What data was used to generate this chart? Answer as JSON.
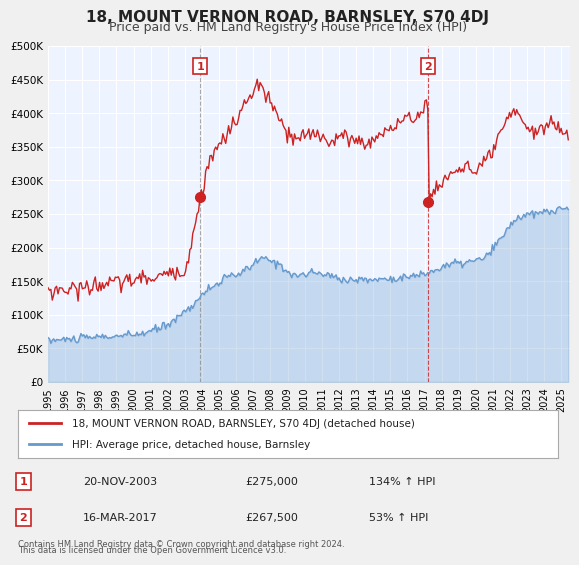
{
  "title": "18, MOUNT VERNON ROAD, BARNSLEY, S70 4DJ",
  "subtitle": "Price paid vs. HM Land Registry's House Price Index (HPI)",
  "xlabel": "",
  "ylabel": "",
  "ylim": [
    0,
    500000
  ],
  "yticks": [
    0,
    50000,
    100000,
    150000,
    200000,
    250000,
    300000,
    350000,
    400000,
    450000,
    500000
  ],
  "ytick_labels": [
    "£0",
    "£50K",
    "£100K",
    "£150K",
    "£200K",
    "£250K",
    "£300K",
    "£350K",
    "£400K",
    "£450K",
    "£500K"
  ],
  "xlim_start": 1995.0,
  "xlim_end": 2025.5,
  "xticks": [
    1995,
    1996,
    1997,
    1998,
    1999,
    2000,
    2001,
    2002,
    2003,
    2004,
    2005,
    2006,
    2007,
    2008,
    2009,
    2010,
    2011,
    2012,
    2013,
    2014,
    2015,
    2016,
    2017,
    2018,
    2019,
    2020,
    2021,
    2022,
    2023,
    2024,
    2025
  ],
  "hpi_color": "#6699cc",
  "price_color": "#cc2222",
  "sale1_x": 2003.896,
  "sale1_y": 275000,
  "sale1_label": "1",
  "sale1_date": "20-NOV-2003",
  "sale1_price": "£275,000",
  "sale1_hpi": "134% ↑ HPI",
  "sale2_x": 2017.204,
  "sale2_y": 267500,
  "sale2_label": "2",
  "sale2_date": "16-MAR-2017",
  "sale2_price": "£267,500",
  "sale2_hpi": "53% ↑ HPI",
  "legend_line1": "18, MOUNT VERNON ROAD, BARNSLEY, S70 4DJ (detached house)",
  "legend_line2": "HPI: Average price, detached house, Barnsley",
  "footer1": "Contains HM Land Registry data © Crown copyright and database right 2024.",
  "footer2": "This data is licensed under the Open Government Licence v3.0.",
  "bg_color": "#ddeeff",
  "plot_bg": "#eef4ff",
  "grid_color": "#ffffff",
  "title_fontsize": 11,
  "subtitle_fontsize": 9
}
